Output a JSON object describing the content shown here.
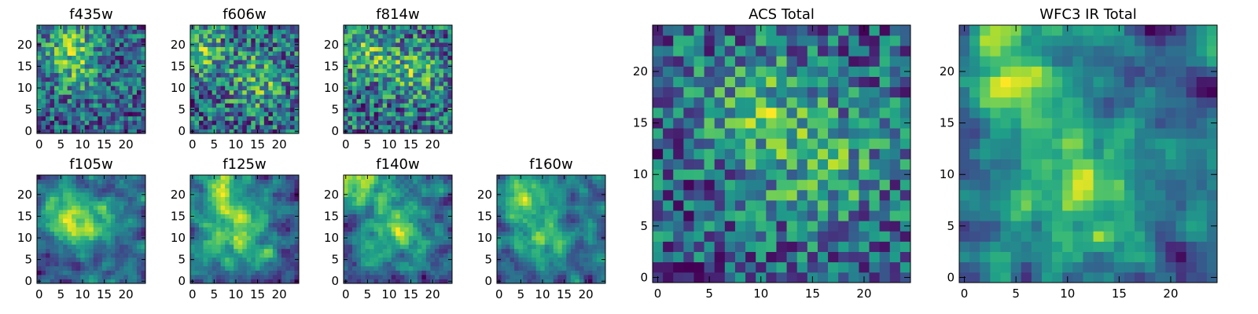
{
  "colormap": "viridis",
  "chart_data": [
    {
      "type": "heatmap",
      "title": "f435w",
      "grid_shape": [
        25,
        25
      ],
      "xlim": [
        0,
        24
      ],
      "ylim": [
        0,
        24
      ],
      "xticks": [
        0,
        5,
        10,
        15,
        20
      ],
      "yticks": [
        0,
        5,
        10,
        15,
        20
      ],
      "texture": "pixel noise, brighter near upper-left",
      "seed": 11
    },
    {
      "type": "heatmap",
      "title": "f606w",
      "grid_shape": [
        25,
        25
      ],
      "xlim": [
        0,
        24
      ],
      "ylim": [
        0,
        24
      ],
      "xticks": [
        0,
        5,
        10,
        15,
        20
      ],
      "yticks": [
        0,
        5,
        10,
        15,
        20
      ],
      "texture": "pixel noise, bright near centre",
      "seed": 23
    },
    {
      "type": "heatmap",
      "title": "f814w",
      "grid_shape": [
        25,
        25
      ],
      "xlim": [
        0,
        24
      ],
      "ylim": [
        0,
        24
      ],
      "xticks": [
        0,
        5,
        10,
        15,
        20
      ],
      "yticks": [
        0,
        5,
        10,
        15,
        20
      ],
      "texture": "pixel noise, bright right of centre",
      "seed": 37
    },
    {
      "type": "heatmap",
      "title": "f105w",
      "grid_shape": [
        25,
        25
      ],
      "xlim": [
        0,
        24
      ],
      "ylim": [
        0,
        24
      ],
      "xticks": [
        0,
        5,
        10,
        15,
        20
      ],
      "yticks": [
        0,
        5,
        10,
        15,
        20
      ],
      "texture": "smooth blobs, bright upper-left",
      "seed": 41
    },
    {
      "type": "heatmap",
      "title": "f125w",
      "grid_shape": [
        25,
        25
      ],
      "xlim": [
        0,
        24
      ],
      "ylim": [
        0,
        24
      ],
      "xticks": [
        0,
        5,
        10,
        15,
        20
      ],
      "yticks": [
        0,
        5,
        10,
        15,
        20
      ],
      "texture": "smooth blobs, bright upper-left and centre",
      "seed": 53
    },
    {
      "type": "heatmap",
      "title": "f140w",
      "grid_shape": [
        25,
        25
      ],
      "xlim": [
        0,
        24
      ],
      "ylim": [
        0,
        24
      ],
      "xticks": [
        0,
        5,
        10,
        15,
        20
      ],
      "yticks": [
        0,
        5,
        10,
        15,
        20
      ],
      "texture": "smooth blobs, bright patches",
      "seed": 67
    },
    {
      "type": "heatmap",
      "title": "f160w",
      "grid_shape": [
        25,
        25
      ],
      "xlim": [
        0,
        24
      ],
      "ylim": [
        0,
        24
      ],
      "xticks": [
        0,
        5,
        10,
        15,
        20
      ],
      "yticks": [
        0,
        5,
        10,
        15,
        20
      ],
      "texture": "smooth blobs, bright centre",
      "seed": 79
    },
    {
      "type": "heatmap",
      "title": "ACS Total",
      "grid_shape": [
        25,
        25
      ],
      "xlim": [
        0,
        24
      ],
      "ylim": [
        0,
        24
      ],
      "xticks": [
        0,
        5,
        10,
        15,
        20
      ],
      "yticks": [
        0,
        5,
        10,
        15,
        20
      ],
      "texture": "pixel noise, bright upper-left and centre",
      "seed": 97
    },
    {
      "type": "heatmap",
      "title": "WFC3 IR Total",
      "grid_shape": [
        25,
        25
      ],
      "xlim": [
        0,
        24
      ],
      "ylim": [
        0,
        24
      ],
      "xticks": [
        0,
        5,
        10,
        15,
        20
      ],
      "yticks": [
        0,
        5,
        10,
        15,
        20
      ],
      "texture": "smooth blobs, bright upper-left and centre",
      "seed": 113
    }
  ]
}
